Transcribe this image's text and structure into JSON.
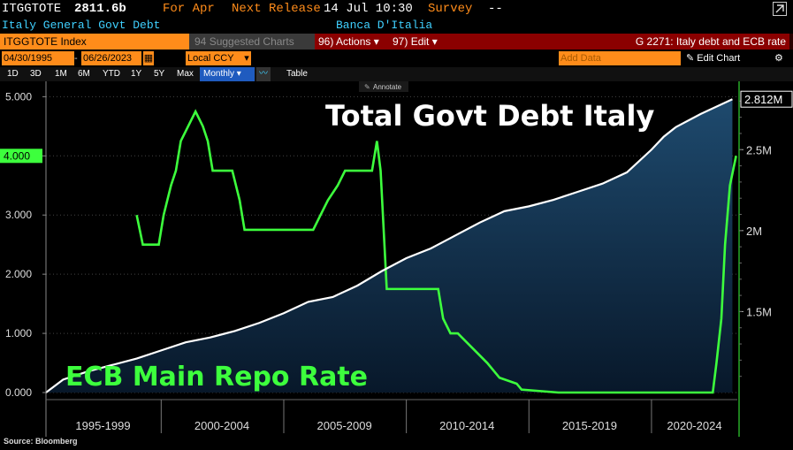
{
  "header": {
    "ticker": "ITGGTOTE",
    "last_value": "2811.6b",
    "period": "For Apr",
    "next_release_label": "Next Release",
    "next_release": "14 Jul 10:30",
    "survey_label": "Survey",
    "survey_value": "--",
    "description": "Italy General Govt Debt",
    "source_org": "Banca D'Italia"
  },
  "toolbar": {
    "security": "ITGGTOTE Index",
    "suggested": "Suggested Charts",
    "suggested_key": "94",
    "actions": "Actions",
    "actions_key": "96)",
    "edit": "Edit",
    "edit_key": "97)",
    "title": "G 2271: Italy debt and ECB rate"
  },
  "range": {
    "start": "04/30/1995",
    "end": "06/26/2023",
    "currency": "Local CCY",
    "add_data": "Add Data",
    "edit_chart": "Edit Chart"
  },
  "periods": {
    "items": [
      "1D",
      "3D",
      "1M",
      "6M",
      "YTD",
      "1Y",
      "5Y",
      "Max"
    ],
    "selected": "Monthly",
    "table": "Table",
    "annotate": "Annotate"
  },
  "source": "Source: Bloomberg",
  "colors": {
    "debt": "#ffffff",
    "rate": "#3dff3d",
    "area_top": "#1e4a6e",
    "area_bottom": "#08182a",
    "orange": "#ff8c1a",
    "header_cyan": "#3fd0ff"
  },
  "chart_data": {
    "type": "line",
    "x_tick_labels": [
      "1995-1999",
      "2000-2004",
      "2005-2009",
      "2010-2014",
      "2015-2019",
      "2020-2024"
    ],
    "xlim": [
      1995.3,
      2023.5
    ],
    "series": [
      {
        "name": "Total Govt Debt Italy",
        "axis": "right",
        "x": [
          1995.3,
          1996,
          1997,
          1998,
          1999,
          2000,
          2001,
          2002,
          2003,
          2004,
          2005,
          2006,
          2007,
          2008,
          2009,
          2010,
          2011,
          2012,
          2013,
          2014,
          2015,
          2016,
          2017,
          2018,
          2019,
          2020,
          2020.5,
          2021,
          2022,
          2023.3
        ],
        "values": [
          1.0,
          1.08,
          1.13,
          1.17,
          1.21,
          1.26,
          1.31,
          1.34,
          1.38,
          1.43,
          1.49,
          1.56,
          1.59,
          1.66,
          1.75,
          1.83,
          1.89,
          1.97,
          2.05,
          2.12,
          2.15,
          2.19,
          2.24,
          2.29,
          2.36,
          2.5,
          2.58,
          2.64,
          2.72,
          2.8116
        ]
      },
      {
        "name": "ECB Main Repo Rate",
        "axis": "left",
        "x": [
          1999.0,
          1999.25,
          1999.9,
          2000.1,
          2000.4,
          2000.6,
          2000.8,
          2001.4,
          2001.7,
          2001.9,
          2002.1,
          2002.9,
          2003.2,
          2003.4,
          2005.9,
          2006.2,
          2006.5,
          2006.8,
          2007.2,
          2007.5,
          2008.6,
          2008.8,
          2008.95,
          2009.2,
          2011.3,
          2011.5,
          2011.8,
          2012.1,
          2012.7,
          2013.3,
          2013.8,
          2014.5,
          2014.7,
          2016.2,
          2022.5,
          2022.65,
          2022.85,
          2023.0,
          2023.2,
          2023.45
        ],
        "values": [
          3.0,
          2.5,
          2.5,
          3.0,
          3.5,
          3.75,
          4.25,
          4.75,
          4.5,
          4.25,
          3.75,
          3.75,
          3.25,
          2.75,
          2.75,
          2.75,
          3.0,
          3.25,
          3.5,
          3.75,
          3.75,
          4.25,
          3.75,
          1.75,
          1.75,
          1.25,
          1.0,
          1.0,
          0.75,
          0.5,
          0.25,
          0.15,
          0.05,
          0.0,
          0.0,
          0.5,
          1.25,
          2.5,
          3.5,
          4.0
        ]
      }
    ],
    "y_left": {
      "ticks": [
        "0.000",
        "1.000",
        "2.000",
        "3.000",
        "4.000",
        "5.000"
      ],
      "ylim": [
        0,
        5.2
      ],
      "highlight": "4.000"
    },
    "y_right": {
      "ticks": [
        "1.5M",
        "2M",
        "2.5M"
      ],
      "ylim": [
        1.0,
        2.9
      ],
      "last_label": "2.812M"
    },
    "annotations": [
      "Total Govt Debt Italy",
      "ECB Main Repo Rate"
    ],
    "grid": true,
    "legend": "none"
  }
}
